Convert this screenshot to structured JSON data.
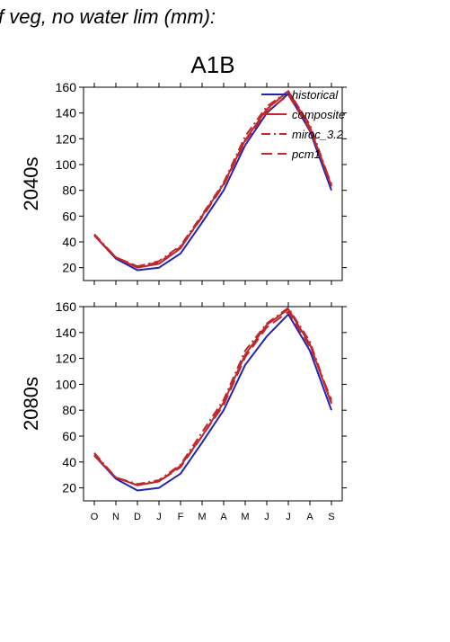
{
  "figure": {
    "title": "f veg, no water lim (mm):",
    "scenario": "A1B"
  },
  "colors": {
    "historical": "#2323b4",
    "future": "#c0282b",
    "axis": "#000000"
  },
  "legend": {
    "placement": "top-right",
    "items": [
      {
        "label": "historical",
        "style": "solid",
        "color": "#2323b4"
      },
      {
        "label": "composite",
        "style": "solid",
        "color": "#c0282b"
      },
      {
        "label": "miroc_3.2",
        "style": "dashdot",
        "color": "#c0282b"
      },
      {
        "label": "pcm1",
        "style": "longdash",
        "color": "#c0282b"
      }
    ]
  },
  "chart_data": [
    {
      "type": "line",
      "title": "A1B",
      "ylabel": "2040s",
      "xlabel": "",
      "categories": [
        "O",
        "N",
        "D",
        "J",
        "F",
        "M",
        "A",
        "M",
        "J",
        "J",
        "A",
        "S"
      ],
      "ylim": [
        10,
        160
      ],
      "yticks": [
        20,
        40,
        60,
        80,
        100,
        120,
        140,
        160
      ],
      "series": [
        {
          "name": "historical",
          "values": [
            45,
            27,
            18,
            20,
            31,
            55,
            80,
            115,
            140,
            155,
            126,
            80
          ]
        },
        {
          "name": "composite",
          "values": [
            45,
            28,
            20,
            23,
            35,
            60,
            85,
            119,
            143,
            157,
            129,
            83
          ]
        },
        {
          "name": "miroc_3.2",
          "values": [
            46,
            28,
            21,
            25,
            37,
            61,
            86,
            122,
            145,
            157,
            131,
            84
          ]
        },
        {
          "name": "pcm1",
          "values": [
            45,
            28,
            21,
            24,
            36,
            59,
            84,
            118,
            141,
            154,
            127,
            85
          ]
        }
      ]
    },
    {
      "type": "line",
      "title": "",
      "ylabel": "2080s",
      "xlabel": "",
      "categories": [
        "O",
        "N",
        "D",
        "J",
        "F",
        "M",
        "A",
        "M",
        "J",
        "J",
        "A",
        "S"
      ],
      "ylim": [
        10,
        160
      ],
      "yticks": [
        20,
        40,
        60,
        80,
        100,
        120,
        140,
        160
      ],
      "series": [
        {
          "name": "historical",
          "values": [
            45,
            27,
            18,
            20,
            31,
            55,
            80,
            115,
            137,
            154,
            126,
            80
          ]
        },
        {
          "name": "composite",
          "values": [
            45,
            28,
            22,
            25,
            37,
            60,
            86,
            123,
            146,
            158,
            131,
            85
          ]
        },
        {
          "name": "miroc_3.2",
          "values": [
            47,
            28,
            23,
            26,
            38,
            63,
            88,
            126,
            147,
            159,
            133,
            86
          ]
        },
        {
          "name": "pcm1",
          "values": [
            46,
            28,
            22,
            25,
            36,
            60,
            84,
            121,
            144,
            156,
            129,
            88
          ]
        }
      ]
    }
  ]
}
